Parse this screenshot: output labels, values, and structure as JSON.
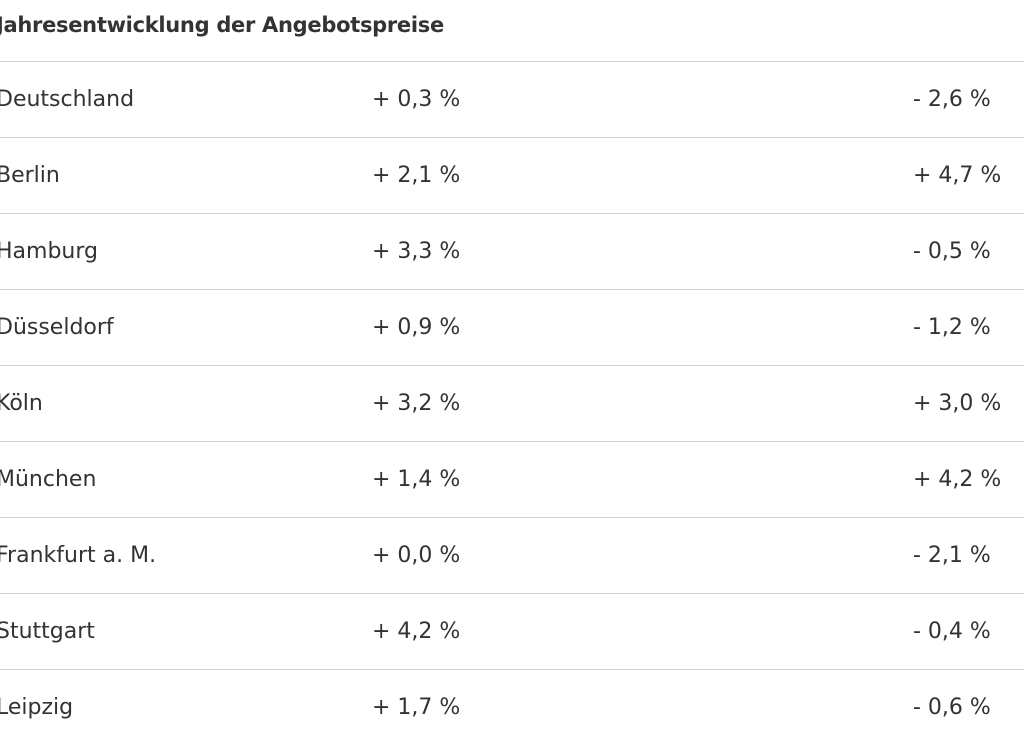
{
  "title": "Jahresentwicklung der Angebotspreise",
  "rows": [
    {
      "city": "Deutschland",
      "col1": "+ 0,3 %",
      "col2": "- 2,6 %"
    },
    {
      "city": "Berlin",
      "col1": "+ 2,1 %",
      "col2": "+ 4,7 %"
    },
    {
      "city": "Hamburg",
      "col1": "+ 3,3 %",
      "col2": "- 0,5 %"
    },
    {
      "city": "Düsseldorf",
      "col1": "+ 0,9 %",
      "col2": "- 1,2 %"
    },
    {
      "city": "Köln",
      "col1": "+ 3,2 %",
      "col2": "+ 3,0 %"
    },
    {
      "city": "München",
      "col1": "+ 1,4 %",
      "col2": "+ 4,2 %"
    },
    {
      "city": "Frankfurt a. M.",
      "col1": "+ 0,0 %",
      "col2": "- 2,1 %"
    },
    {
      "city": "Stuttgart",
      "col1": "+ 4,2 %",
      "col2": "- 0,4 %"
    },
    {
      "city": "Leipzig",
      "col1": "+ 1,7 %",
      "col2": "- 0,6 %"
    }
  ]
}
